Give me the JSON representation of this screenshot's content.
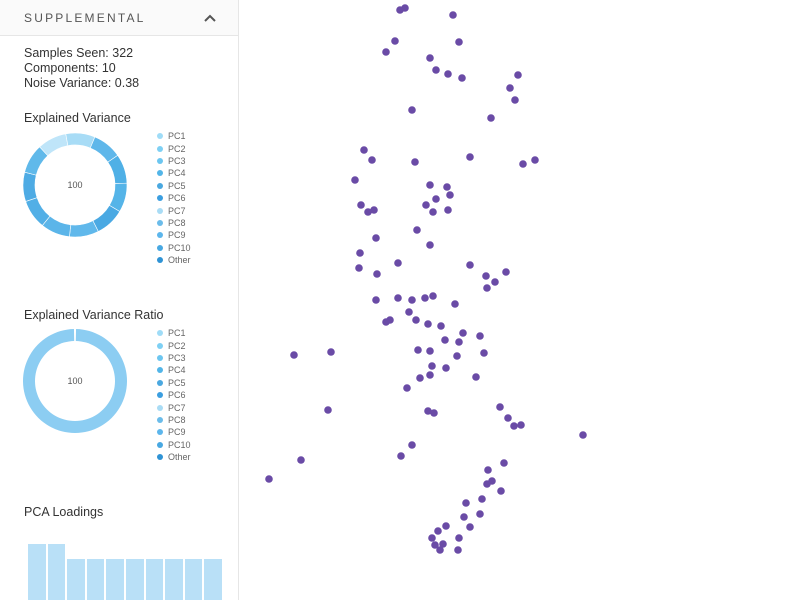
{
  "panel": {
    "title": "SUPPLEMENTAL",
    "stats": {
      "samples_seen": "Samples Seen: 322",
      "components": "Components: 10",
      "noise_variance": "Noise Variance: 0.38"
    },
    "explained_variance": {
      "title": "Explained Variance",
      "center_label": "100",
      "legend": [
        "PC1",
        "PC2",
        "PC3",
        "PC4",
        "PC5",
        "PC6",
        "PC7",
        "PC8",
        "PC9",
        "PC10",
        "Other"
      ]
    },
    "explained_variance_ratio": {
      "title": "Explained Variance Ratio",
      "center_label": "100",
      "legend": [
        "PC1",
        "PC2",
        "PC3",
        "PC4",
        "PC5",
        "PC6",
        "PC7",
        "PC8",
        "PC9",
        "PC10",
        "Other"
      ]
    },
    "loadings": {
      "title": "PCA Loadings",
      "values": [
        1.0,
        1.0,
        0.73,
        0.73,
        0.73,
        0.73,
        0.73,
        0.73,
        0.73,
        0.73
      ]
    }
  },
  "colors": {
    "legend": [
      "#9fdcf7",
      "#7ed0f4",
      "#6cc6f0",
      "#52b5e8",
      "#4aa8e0",
      "#3b9ee0",
      "#a9dcf5",
      "#6bbcea",
      "#5cb6ec",
      "#48a8e2",
      "#2f93d5"
    ],
    "donut1": [
      "#bfe5f9",
      "#a8dcf6",
      "#5fb7ea",
      "#4fb0e6",
      "#55b4e8",
      "#4aa9e3",
      "#60b8eb",
      "#5bb5e9",
      "#52afe6",
      "#4eabe4",
      "#60b9ea"
    ],
    "donut2": "#8ccdf2",
    "points": "#6a4ba6",
    "bars": "#b9e0f7"
  },
  "scatter_points": [
    [
      405,
      8
    ],
    [
      400,
      10
    ],
    [
      453,
      15
    ],
    [
      459,
      42
    ],
    [
      395,
      41
    ],
    [
      386,
      52
    ],
    [
      430,
      58
    ],
    [
      518,
      75
    ],
    [
      436,
      70
    ],
    [
      448,
      74
    ],
    [
      462,
      78
    ],
    [
      510,
      88
    ],
    [
      515,
      100
    ],
    [
      412,
      110
    ],
    [
      491,
      118
    ],
    [
      364,
      150
    ],
    [
      372,
      160
    ],
    [
      415,
      162
    ],
    [
      470,
      157
    ],
    [
      535,
      160
    ],
    [
      523,
      164
    ],
    [
      355,
      180
    ],
    [
      430,
      185
    ],
    [
      447,
      187
    ],
    [
      450,
      195
    ],
    [
      436,
      199
    ],
    [
      426,
      205
    ],
    [
      448,
      210
    ],
    [
      361,
      205
    ],
    [
      368,
      212
    ],
    [
      374,
      210
    ],
    [
      433,
      212
    ],
    [
      417,
      230
    ],
    [
      430,
      245
    ],
    [
      376,
      238
    ],
    [
      360,
      253
    ],
    [
      359,
      268
    ],
    [
      377,
      274
    ],
    [
      398,
      263
    ],
    [
      470,
      265
    ],
    [
      486,
      276
    ],
    [
      506,
      272
    ],
    [
      487,
      288
    ],
    [
      495,
      282
    ],
    [
      376,
      300
    ],
    [
      398,
      298
    ],
    [
      412,
      300
    ],
    [
      425,
      298
    ],
    [
      433,
      296
    ],
    [
      455,
      304
    ],
    [
      409,
      312
    ],
    [
      416,
      320
    ],
    [
      428,
      324
    ],
    [
      441,
      326
    ],
    [
      463,
      333
    ],
    [
      480,
      336
    ],
    [
      390,
      320
    ],
    [
      386,
      322
    ],
    [
      445,
      340
    ],
    [
      459,
      342
    ],
    [
      418,
      350
    ],
    [
      430,
      351
    ],
    [
      457,
      356
    ],
    [
      484,
      353
    ],
    [
      294,
      355
    ],
    [
      331,
      352
    ],
    [
      432,
      366
    ],
    [
      446,
      368
    ],
    [
      476,
      377
    ],
    [
      430,
      375
    ],
    [
      420,
      378
    ],
    [
      407,
      388
    ],
    [
      328,
      410
    ],
    [
      428,
      411
    ],
    [
      434,
      413
    ],
    [
      500,
      407
    ],
    [
      508,
      418
    ],
    [
      514,
      426
    ],
    [
      521,
      425
    ],
    [
      583,
      435
    ],
    [
      412,
      445
    ],
    [
      401,
      456
    ],
    [
      301,
      460
    ],
    [
      269,
      479
    ],
    [
      504,
      463
    ],
    [
      488,
      470
    ],
    [
      492,
      481
    ],
    [
      487,
      484
    ],
    [
      501,
      491
    ],
    [
      482,
      499
    ],
    [
      466,
      503
    ],
    [
      480,
      514
    ],
    [
      464,
      517
    ],
    [
      446,
      526
    ],
    [
      438,
      531
    ],
    [
      470,
      527
    ],
    [
      432,
      538
    ],
    [
      443,
      544
    ],
    [
      435,
      545
    ],
    [
      459,
      538
    ],
    [
      458,
      550
    ],
    [
      440,
      550
    ]
  ]
}
